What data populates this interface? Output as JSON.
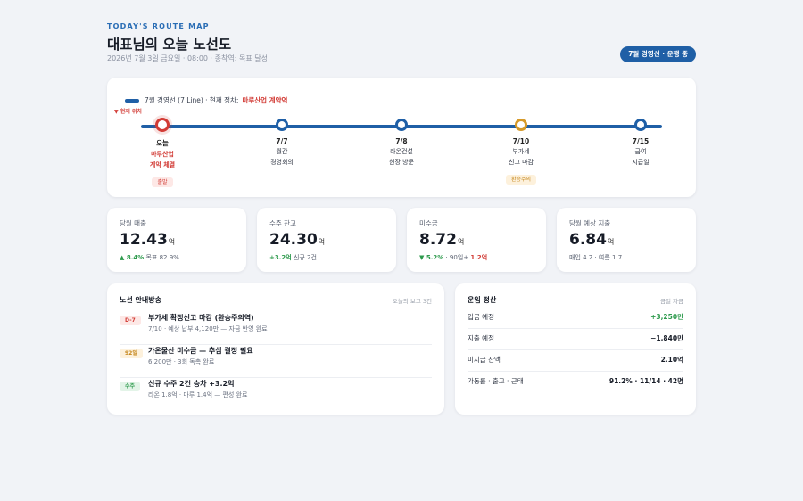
{
  "header": {
    "eyebrow": "TODAY'S ROUTE MAP",
    "title": "대표님의 오늘 노선도",
    "subtitle": "2026년 7월 3일 금요일 · 08:00 · 종착역: 목표 달성",
    "line_badge": "7월 경영선 · 운행 중"
  },
  "route": {
    "legend_line": "7월 경영선 (7 Line) · 현재 정차:",
    "legend_current": "마루산업 계약역",
    "here_marker": "▼ 현재 위치",
    "line_color": "#1f5fa6",
    "stations": [
      {
        "date": "오늘",
        "label1": "마루산업",
        "label2": "계약 체결",
        "tag": "출발",
        "state": "current"
      },
      {
        "date": "7/7",
        "label1": "월간",
        "label2": "경영회의",
        "tag": "",
        "state": "normal"
      },
      {
        "date": "7/8",
        "label1": "라온건설",
        "label2": "현장 방문",
        "tag": "",
        "state": "normal"
      },
      {
        "date": "7/10",
        "label1": "부가세",
        "label2": "신고 마감",
        "tag": "환승주의",
        "state": "warn"
      },
      {
        "date": "7/15",
        "label1": "급여",
        "label2": "지급일",
        "tag": "",
        "state": "normal"
      }
    ]
  },
  "kpis": [
    {
      "label": "당월 매출",
      "value": "12.43",
      "unit": "억",
      "sub_strong": "▲ 8.4%",
      "sub_rest": " 목표 82.9%"
    },
    {
      "label": "수주 잔고",
      "value": "24.30",
      "unit": "억",
      "sub_strong": "+3.2억",
      "sub_rest": " 신규 2건"
    },
    {
      "label": "미수금",
      "value": "8.72",
      "unit": "억",
      "sub_strong": "▼ 5.2%",
      "sub_rest": " · 90일+ ",
      "sub_neg": "1.2억"
    },
    {
      "label": "당월 예상 지출",
      "value": "6.84",
      "unit": "억",
      "sub_strong": "",
      "sub_rest": "매입 4.2 · 여름 1.7"
    }
  ],
  "bulletin": {
    "title": "노선 안내방송",
    "meta": "오늘의 보고 3건",
    "items": [
      {
        "badge": "D-7",
        "title": "부가세 확정신고 마감 (환승주의역)",
        "desc": "7/10 · 예상 납부 4,120만 — 자금 반영 완료",
        "tone": "red"
      },
      {
        "badge": "92일",
        "title": "가온물산 미수금 — 추심 결정 필요",
        "desc": "6,200만 · 3회 독촉 완료",
        "tone": "amber"
      },
      {
        "badge": "수주",
        "title": "신규 수주 2건 승차 +3.2억",
        "desc": "라온 1.8억 · 마루 1.4억 — 편성 완료",
        "tone": "green"
      }
    ]
  },
  "settlement": {
    "title": "운임 정산",
    "meta": "금일 자금",
    "rows": [
      {
        "key": "입금 예정",
        "value": "+3,250만",
        "tone": "pos"
      },
      {
        "key": "지출 예정",
        "value": "−1,840만",
        "tone": ""
      },
      {
        "key": "미지급 잔액",
        "value": "2.10억",
        "tone": ""
      },
      {
        "key": "가동률 · 출고 · 근태",
        "value": "91.2% · 11/14 · 42명",
        "tone": ""
      }
    ]
  }
}
